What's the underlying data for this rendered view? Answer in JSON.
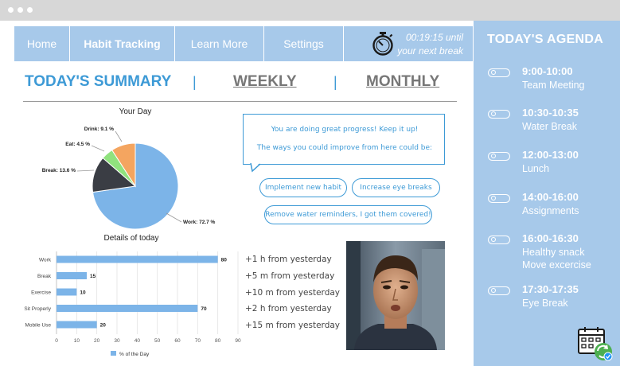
{
  "nav": {
    "tabs": [
      {
        "label": "Home"
      },
      {
        "label": "Habit Tracking"
      },
      {
        "label": "Learn More"
      },
      {
        "label": "Settings"
      }
    ],
    "timer_icon": "stopwatch-icon",
    "timer_text": "00:19:15 until\nyour next break"
  },
  "summary": {
    "today_label": "TODAY'S SUMMARY",
    "weekly_label": "WEEKLY",
    "monthly_label": "MONTHLY",
    "separator": "|"
  },
  "chart_data": [
    {
      "type": "pie",
      "title": "Your Day",
      "slices": [
        {
          "label": "Work: 72.7 %",
          "name": "Work",
          "value": 72.7,
          "color": "#7cb4e8"
        },
        {
          "label": "Break: 13.6 %",
          "name": "Break",
          "value": 13.6,
          "color": "#3a3d44"
        },
        {
          "label": "Eat: 4.5 %",
          "name": "Eat",
          "value": 4.5,
          "color": "#90e27e"
        },
        {
          "label": "Drink: 9.1 %",
          "name": "Drink",
          "value": 9.1,
          "color": "#f4a560"
        }
      ]
    },
    {
      "type": "bar",
      "orientation": "horizontal",
      "title": "Details of today",
      "categories": [
        "Work",
        "Break",
        "Exercise",
        "Sit Properly",
        "Mobile Use"
      ],
      "values": [
        80,
        15,
        10,
        70,
        20
      ],
      "xlim": [
        0,
        90
      ],
      "xticks": [
        0,
        10,
        20,
        30,
        40,
        50,
        60,
        70,
        80,
        90
      ],
      "legend": "% of the Day",
      "legend_position": "bottom",
      "grid": true,
      "color": "#7cb4e8"
    }
  ],
  "deltas": [
    "+1 h from yesterday",
    "+5 m from yesterday",
    "+10 m from yesterday",
    "+2 h from yesterday",
    "+15 m from yesterday"
  ],
  "message": {
    "line1": "You are doing great progress! Keep it up!",
    "line2": "The ways you could improve from here could be:"
  },
  "suggestions": [
    "Implement new habit",
    "Increase eye breaks",
    "Remove water reminders, I got them covered!"
  ],
  "agenda": {
    "title": "TODAY'S AGENDA",
    "items": [
      {
        "time": "9:00-10:00",
        "desc": "Team Meeting"
      },
      {
        "time": "10:30-10:35",
        "desc": "Water Break"
      },
      {
        "time": "12:00-13:00",
        "desc": "Lunch"
      },
      {
        "time": "14:00-16:00",
        "desc": "Assignments"
      },
      {
        "time": "16:00-16:30",
        "desc": "Healthy snack\nMove excercise"
      },
      {
        "time": "17:30-17:35",
        "desc": "Eye Break"
      }
    ],
    "calendar_icon": "calendar-sync-icon"
  },
  "colors": {
    "accent": "#3d9ad6",
    "nav_bg": "#a7c9ea",
    "bar": "#7cb4e8"
  }
}
